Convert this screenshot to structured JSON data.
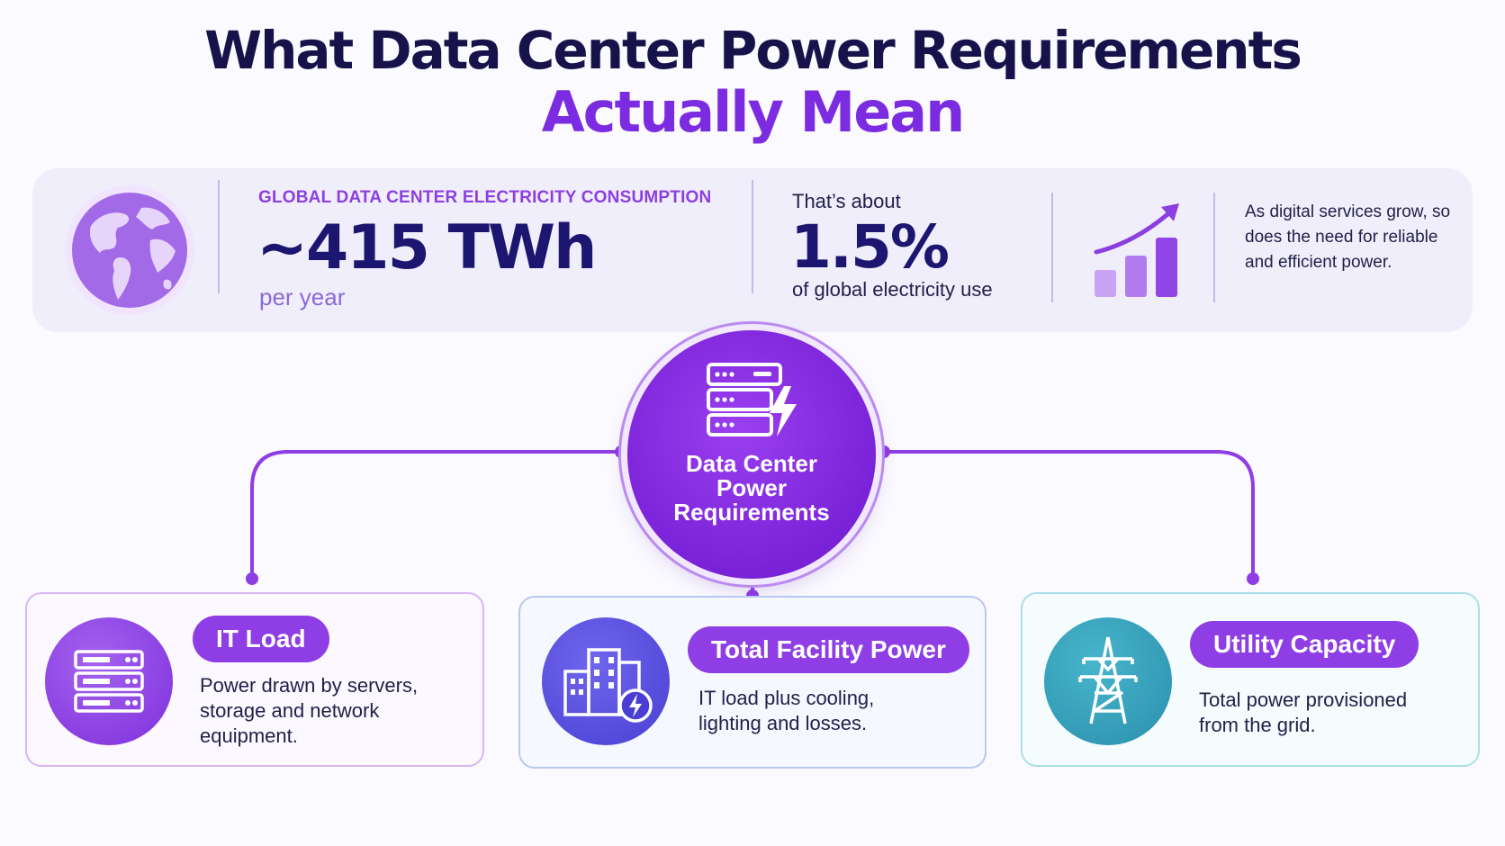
{
  "title": {
    "line1": "What Data Center Power Requirements",
    "line2": "Actually Mean"
  },
  "stats": {
    "consumption_label": "GLOBAL DATA CENTER ELECTRICITY CONSUMPTION",
    "consumption_value": "~415 TWh",
    "consumption_unit": "per year",
    "share_prefix": "That’s about",
    "share_value": "1.5%",
    "share_suffix": "of global electricity use",
    "growth_text": "As digital services grow, so does the need for reliable and efficient power."
  },
  "hub": {
    "line1": "Data Center",
    "line2": "Power",
    "line3": "Requirements"
  },
  "cards": [
    {
      "title": "IT Load",
      "description": "Power drawn by servers, storage and network equipment."
    },
    {
      "title": "Total Facility Power",
      "description": "IT load plus cooling, lighting and losses."
    },
    {
      "title": "Utility Capacity",
      "description": "Total power provisioned from the grid."
    }
  ],
  "colors": {
    "title_dark": "#17134a",
    "accent_purple": "#7c2ce0",
    "stat_label": "#8b3fe0",
    "it_load": "#8e3ee4",
    "facility": "#5b4fe0",
    "utility": "#2e9bb6"
  },
  "icons": [
    "globe-icon",
    "growth-chart-icon",
    "server-bolt-icon",
    "server-rack-icon",
    "buildings-bolt-icon",
    "transmission-tower-icon"
  ]
}
